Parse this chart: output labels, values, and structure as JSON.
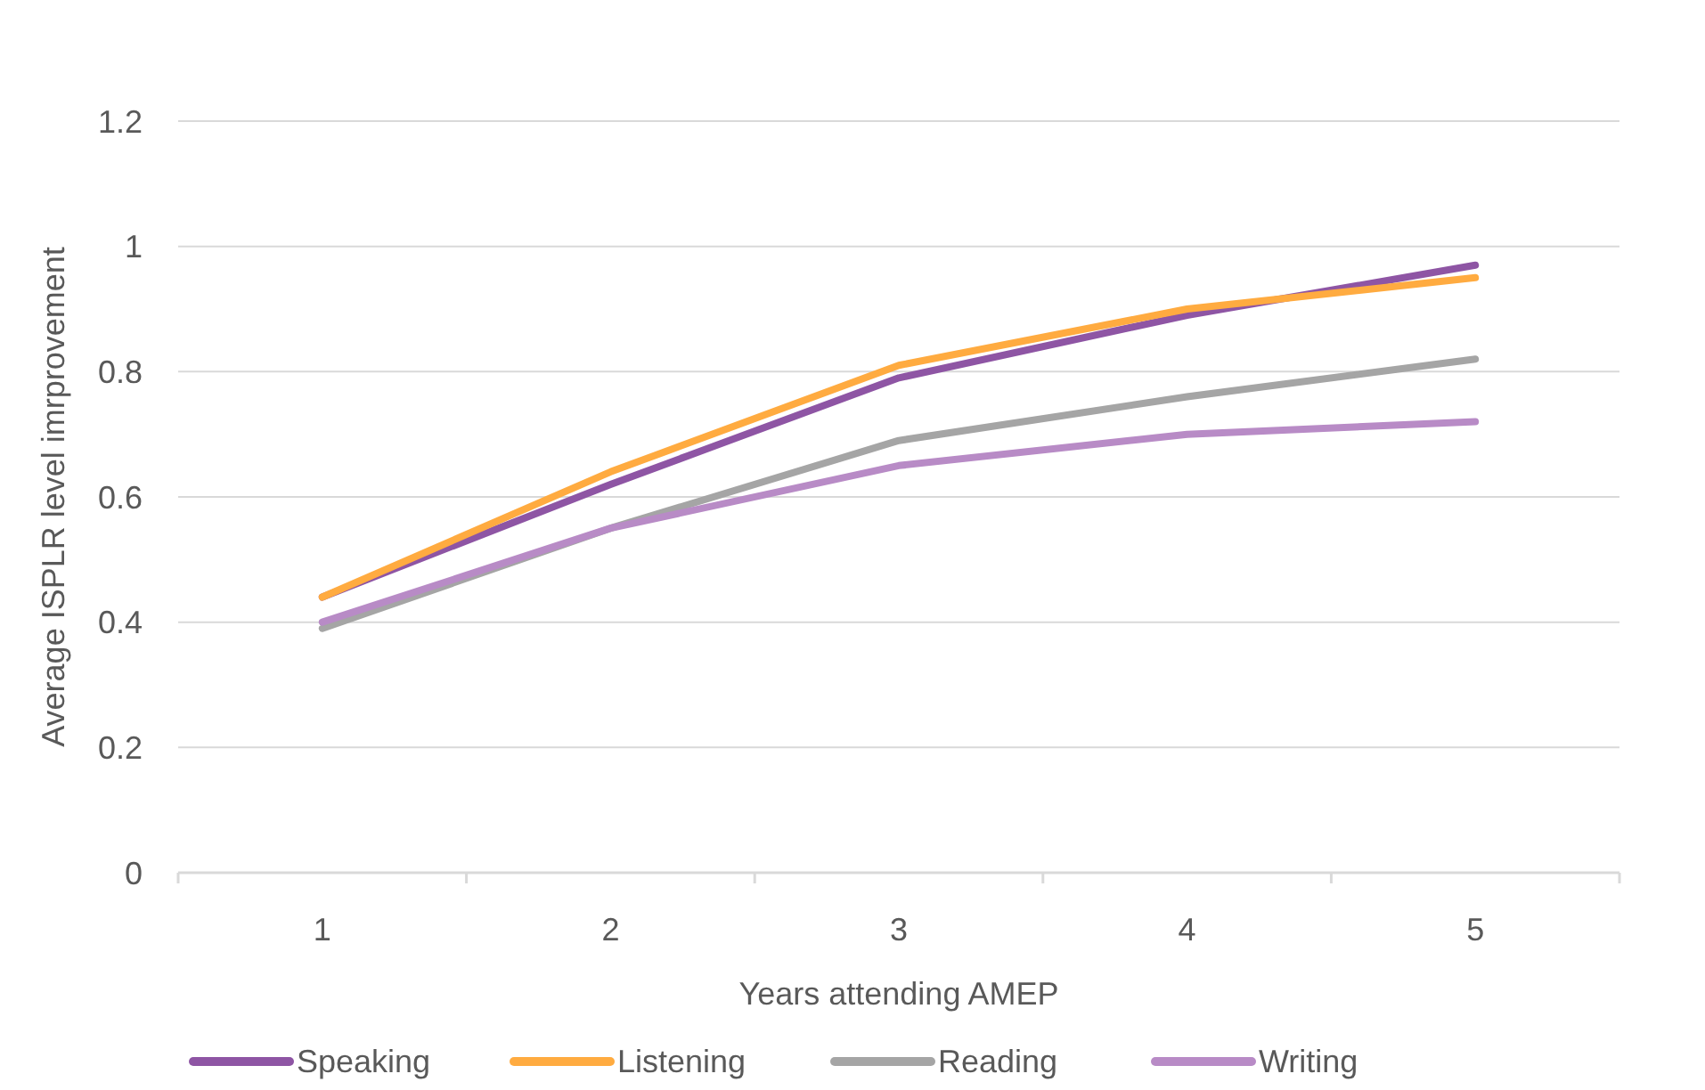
{
  "chart_data": {
    "type": "line",
    "xlabel": "Years attending AMEP",
    "ylabel": "Average ISPLR level imrprovement",
    "categories": [
      "1",
      "2",
      "3",
      "4",
      "5"
    ],
    "series": [
      {
        "name": "Speaking",
        "color": "#8e55a4",
        "values": [
          0.44,
          0.62,
          0.79,
          0.89,
          0.97
        ]
      },
      {
        "name": "Listening",
        "color": "#ffab40",
        "values": [
          0.44,
          0.64,
          0.81,
          0.9,
          0.95
        ]
      },
      {
        "name": "Reading",
        "color": "#a5a5a5",
        "values": [
          0.39,
          0.55,
          0.69,
          0.76,
          0.82
        ]
      },
      {
        "name": "Writing",
        "color": "#b88bc6",
        "values": [
          0.4,
          0.55,
          0.65,
          0.7,
          0.72
        ]
      }
    ],
    "ylim": [
      0,
      1.2
    ],
    "yticks": [
      0,
      0.2,
      0.4,
      0.6,
      0.8,
      1,
      1.2
    ],
    "grid": "y",
    "legend": "bottom",
    "marker": "none",
    "line_style": "solid"
  }
}
